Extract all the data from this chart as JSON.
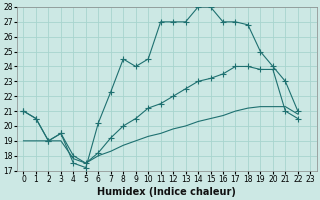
{
  "xlabel": "Humidex (Indice chaleur)",
  "xlim": [
    -0.5,
    23.5
  ],
  "ylim": [
    17,
    28
  ],
  "xticks": [
    0,
    1,
    2,
    3,
    4,
    5,
    6,
    7,
    8,
    9,
    10,
    11,
    12,
    13,
    14,
    15,
    16,
    17,
    18,
    19,
    20,
    21,
    22,
    23
  ],
  "yticks": [
    17,
    18,
    19,
    20,
    21,
    22,
    23,
    24,
    25,
    26,
    27,
    28
  ],
  "background_color": "#cce8e4",
  "grid_color": "#a8d4ce",
  "line_color": "#1e7070",
  "line1_x": [
    0,
    1,
    2,
    3,
    4,
    5,
    6,
    7,
    8,
    9,
    10,
    11,
    12,
    13,
    14,
    15,
    16,
    17,
    18,
    19,
    20,
    21,
    22
  ],
  "line1_y": [
    21,
    20.5,
    19,
    19.5,
    17.5,
    17.2,
    20.2,
    22.3,
    24.5,
    24.0,
    24.5,
    27.0,
    27.0,
    27.0,
    28.0,
    28.0,
    27.0,
    27.0,
    26.8,
    25.0,
    24.0,
    23.0,
    21.0
  ],
  "line2_x": [
    0,
    1,
    2,
    3,
    4,
    5,
    6,
    7,
    8,
    9,
    10,
    11,
    12,
    13,
    14,
    15,
    16,
    17,
    18,
    19,
    20,
    21,
    22
  ],
  "line2_y": [
    21.0,
    20.5,
    19.0,
    19.5,
    18.0,
    17.5,
    18.2,
    19.2,
    20.0,
    20.5,
    21.2,
    21.5,
    22.0,
    22.5,
    23.0,
    23.2,
    23.5,
    24.0,
    24.0,
    23.8,
    23.8,
    21.0,
    20.5
  ],
  "line3_x": [
    0,
    1,
    2,
    3,
    4,
    5,
    6,
    7,
    8,
    9,
    10,
    11,
    12,
    13,
    14,
    15,
    16,
    17,
    18,
    19,
    20,
    21,
    22
  ],
  "line3_y": [
    19.0,
    19.0,
    19.0,
    19.0,
    17.8,
    17.5,
    18.0,
    18.3,
    18.7,
    19.0,
    19.3,
    19.5,
    19.8,
    20.0,
    20.3,
    20.5,
    20.7,
    21.0,
    21.2,
    21.3,
    21.3,
    21.3,
    20.8
  ],
  "figsize": [
    3.2,
    2.0
  ],
  "dpi": 100,
  "tick_fontsize": 5.5,
  "label_fontsize": 7
}
